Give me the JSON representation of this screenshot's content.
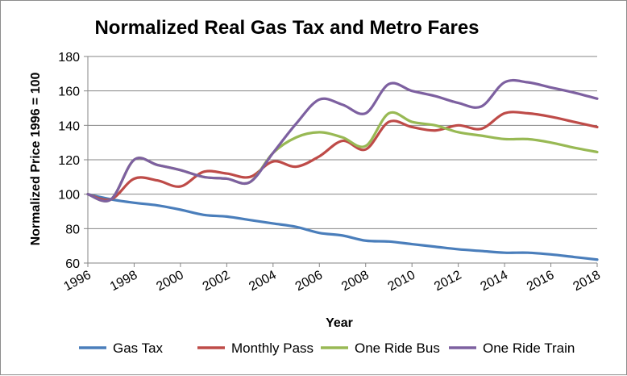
{
  "chart_data": {
    "type": "line",
    "title": "Normalized Real Gas Tax and Metro Fares",
    "xlabel": "Year",
    "ylabel": "Normalized Price 1996 = 100",
    "xlim": [
      1996,
      2018
    ],
    "ylim": [
      60,
      180
    ],
    "xticks": [
      "1996",
      "1998",
      "2000",
      "2002",
      "2004",
      "2006",
      "2008",
      "2010",
      "2012",
      "2014",
      "2016",
      "2018"
    ],
    "yticks": [
      "60",
      "80",
      "100",
      "120",
      "140",
      "160",
      "180"
    ],
    "grid": true,
    "legend": "bottom",
    "x": [
      1996,
      1997,
      1998,
      1999,
      2000,
      2001,
      2002,
      2003,
      2004,
      2005,
      2006,
      2007,
      2008,
      2009,
      2010,
      2011,
      2012,
      2013,
      2014,
      2015,
      2016,
      2017,
      2018
    ],
    "series": [
      {
        "name": "Gas Tax",
        "color": "#4a7ebb",
        "values": [
          100,
          97,
          95,
          93.5,
          91,
          88,
          87,
          85,
          83,
          81,
          77.5,
          76,
          73,
          72.5,
          71,
          69.5,
          68,
          67,
          66,
          66,
          65,
          63.5,
          62
        ]
      },
      {
        "name": "Monthly Pass",
        "color": "#be4b48",
        "values": [
          100,
          97,
          109,
          108,
          104.5,
          113,
          112,
          110,
          119,
          116,
          122,
          131,
          126,
          142,
          139,
          137,
          140,
          138,
          147,
          147,
          145,
          142,
          139
        ]
      },
      {
        "name": "One Ride Bus",
        "color": "#98b954",
        "values": [
          100,
          97,
          120,
          117,
          114,
          110,
          109,
          107,
          124,
          133,
          136,
          133,
          128,
          147,
          142,
          140,
          136,
          134,
          132,
          132,
          130,
          127,
          124.5
        ]
      },
      {
        "name": "One Ride Train",
        "color": "#7d60a0",
        "values": [
          100,
          97,
          120,
          117,
          114,
          110,
          109,
          107,
          124,
          141,
          155,
          152,
          147,
          164,
          160,
          157,
          153,
          151,
          165,
          165,
          162,
          159,
          155.5
        ]
      }
    ]
  }
}
